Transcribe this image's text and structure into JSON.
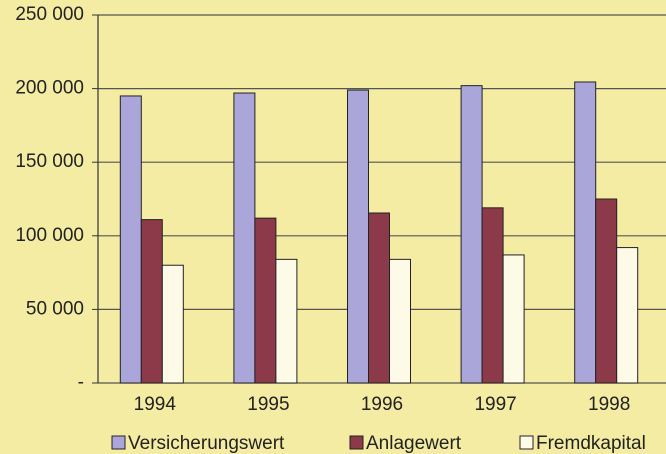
{
  "chart_data": {
    "type": "bar",
    "categories": [
      "1994",
      "1995",
      "1996",
      "1997",
      "1998"
    ],
    "series": [
      {
        "name": "Versicherungswert",
        "color": "#aaa6d9",
        "values": [
          195000,
          197000,
          199000,
          202000,
          204500
        ]
      },
      {
        "name": "Anlagewert",
        "color": "#8c3a49",
        "values": [
          111000,
          112000,
          115500,
          119000,
          125000
        ]
      },
      {
        "name": "Fremdkapital",
        "color": "#fdfbe8",
        "values": [
          80000,
          84000,
          84000,
          87000,
          92000
        ]
      }
    ],
    "ylim": [
      0,
      250000
    ],
    "yticks": [
      {
        "value": 0,
        "label": "-"
      },
      {
        "value": 50000,
        "label": "50 000"
      },
      {
        "value": 100000,
        "label": "100 000"
      },
      {
        "value": 150000,
        "label": "150 000"
      },
      {
        "value": 200000,
        "label": "200 000"
      },
      {
        "value": 250000,
        "label": "250 000"
      }
    ],
    "grid": true,
    "legend": "bottom"
  }
}
